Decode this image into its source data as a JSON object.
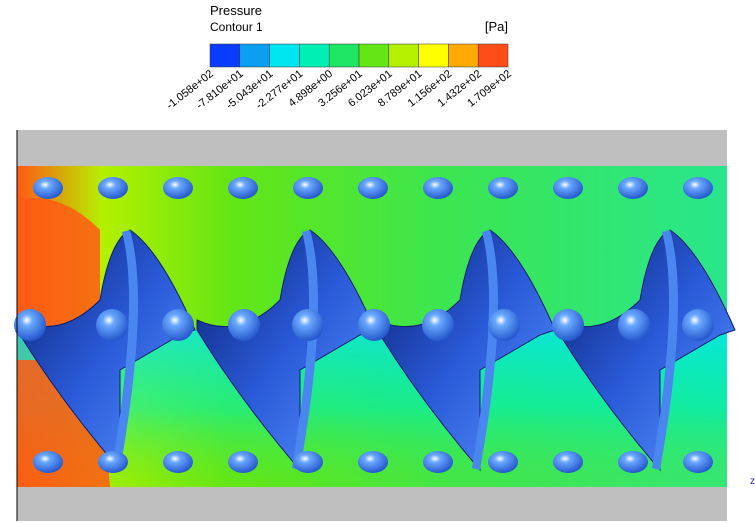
{
  "legend": {
    "title": "Pressure",
    "subtitle": "Contour 1",
    "unit": "[Pa]",
    "colors": [
      "#0a3cff",
      "#0a9ff0",
      "#00e6f0",
      "#00f0b4",
      "#1ee664",
      "#64e614",
      "#b4f000",
      "#ffff00",
      "#ffaa00",
      "#ff4d1a"
    ],
    "labels": [
      "-1.058e+02",
      "-7.810e+01",
      "-5.043e+01",
      "-2.277e+01",
      "4.898e+00",
      "3.256e+01",
      "6.023e+01",
      "8.789e+01",
      "1.156e+02",
      "1.432e+02",
      "1.709e+02"
    ]
  },
  "axis_label": "z"
}
